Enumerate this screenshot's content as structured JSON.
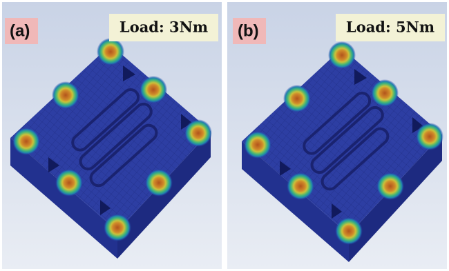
{
  "panels": [
    {
      "label": "(a)",
      "load": "Load: 3Nm"
    },
    {
      "label": "(b)",
      "load": "Load: 5Nm"
    }
  ]
}
